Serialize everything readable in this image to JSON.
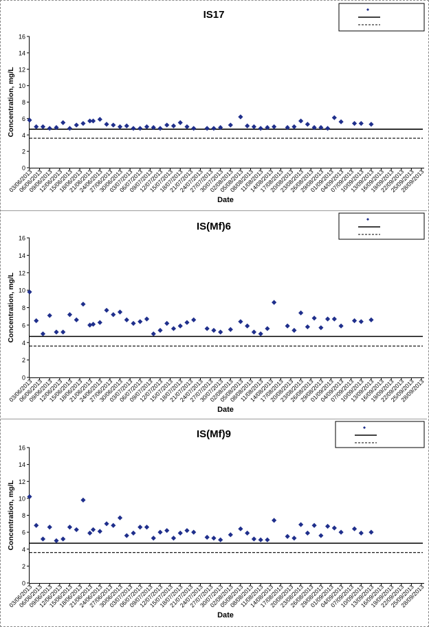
{
  "chart_data": [
    {
      "type": "scatter",
      "title": "IS17",
      "xlabel": "Date",
      "ylabel": "Concentration, mg/L",
      "ylim": [
        0,
        16
      ],
      "yticks": [
        0,
        2,
        4,
        6,
        8,
        10,
        12,
        14,
        16
      ],
      "x_tick_labels": [
        "03/06/2013",
        "06/06/2013",
        "09/06/2013",
        "12/06/2013",
        "15/06/2013",
        "18/06/2013",
        "21/06/2013",
        "24/06/2013",
        "27/06/2013",
        "30/06/2013",
        "03/07/2013",
        "06/07/2013",
        "09/07/2013",
        "12/07/2013",
        "15/07/2013",
        "18/07/2013",
        "21/07/2013",
        "24/07/2013",
        "27/07/2013",
        "30/07/2013",
        "02/08/2013",
        "05/08/2013",
        "08/08/2013",
        "11/08/2013",
        "14/08/2013",
        "17/08/2013",
        "20/08/2013",
        "23/08/2013",
        "26/08/2013",
        "29/08/2013",
        "01/09/2013",
        "04/09/2013",
        "07/09/2013",
        "10/09/2013",
        "13/09/2013",
        "16/09/2013",
        "19/09/2013",
        "22/09/2013",
        "25/09/2013",
        "28/09/2013"
      ],
      "grid": false,
      "legend_position": "top-right",
      "point_color": "#1f2f8c",
      "points": [
        {
          "x": "03/06/2013",
          "y": 5.8
        },
        {
          "x": "05/06/2013",
          "y": 5.0
        },
        {
          "x": "07/06/2013",
          "y": 5.0
        },
        {
          "x": "09/06/2013",
          "y": 4.8
        },
        {
          "x": "11/06/2013",
          "y": 4.9
        },
        {
          "x": "13/06/2013",
          "y": 5.5
        },
        {
          "x": "15/06/2013",
          "y": 4.8
        },
        {
          "x": "17/06/2013",
          "y": 5.2
        },
        {
          "x": "19/06/2013",
          "y": 5.4
        },
        {
          "x": "21/06/2013",
          "y": 5.7
        },
        {
          "x": "22/06/2013",
          "y": 5.7
        },
        {
          "x": "24/06/2013",
          "y": 5.9
        },
        {
          "x": "26/06/2013",
          "y": 5.3
        },
        {
          "x": "28/06/2013",
          "y": 5.2
        },
        {
          "x": "30/06/2013",
          "y": 5.0
        },
        {
          "x": "02/07/2013",
          "y": 5.1
        },
        {
          "x": "04/07/2013",
          "y": 4.8
        },
        {
          "x": "06/07/2013",
          "y": 4.8
        },
        {
          "x": "08/07/2013",
          "y": 5.0
        },
        {
          "x": "10/07/2013",
          "y": 4.9
        },
        {
          "x": "12/07/2013",
          "y": 4.8
        },
        {
          "x": "14/07/2013",
          "y": 5.2
        },
        {
          "x": "16/07/2013",
          "y": 5.1
        },
        {
          "x": "18/07/2013",
          "y": 5.5
        },
        {
          "x": "20/07/2013",
          "y": 5.0
        },
        {
          "x": "22/07/2013",
          "y": 4.8
        },
        {
          "x": "26/07/2013",
          "y": 4.8
        },
        {
          "x": "28/07/2013",
          "y": 4.8
        },
        {
          "x": "30/07/2013",
          "y": 4.9
        },
        {
          "x": "02/08/2013",
          "y": 5.2
        },
        {
          "x": "05/08/2013",
          "y": 6.2
        },
        {
          "x": "07/08/2013",
          "y": 5.1
        },
        {
          "x": "09/08/2013",
          "y": 5.0
        },
        {
          "x": "11/08/2013",
          "y": 4.8
        },
        {
          "x": "13/08/2013",
          "y": 4.9
        },
        {
          "x": "15/08/2013",
          "y": 5.0
        },
        {
          "x": "19/08/2013",
          "y": 4.9
        },
        {
          "x": "21/08/2013",
          "y": 5.0
        },
        {
          "x": "23/08/2013",
          "y": 5.7
        },
        {
          "x": "25/08/2013",
          "y": 5.3
        },
        {
          "x": "27/08/2013",
          "y": 4.9
        },
        {
          "x": "29/08/2013",
          "y": 4.9
        },
        {
          "x": "31/08/2013",
          "y": 4.8
        },
        {
          "x": "02/09/2013",
          "y": 6.1
        },
        {
          "x": "04/09/2013",
          "y": 5.6
        },
        {
          "x": "08/09/2013",
          "y": 5.4
        },
        {
          "x": "10/09/2013",
          "y": 5.4
        },
        {
          "x": "13/09/2013",
          "y": 5.3
        }
      ],
      "hlines": [
        {
          "y": 4.7,
          "style": "solid"
        },
        {
          "y": 3.6,
          "style": "dashed"
        }
      ],
      "legend": [
        "",
        "",
        ""
      ]
    },
    {
      "type": "scatter",
      "title": "IS(Mf)6",
      "xlabel": "Date",
      "ylabel": "Concentration, mg/L",
      "ylim": [
        0,
        16
      ],
      "yticks": [
        0,
        2,
        4,
        6,
        8,
        10,
        12,
        14,
        16
      ],
      "x_tick_labels": [
        "03/06/2013",
        "06/06/2013",
        "09/06/2013",
        "12/06/2013",
        "15/06/2013",
        "18/06/2013",
        "21/06/2013",
        "24/06/2013",
        "27/06/2013",
        "30/06/2013",
        "03/07/2013",
        "06/07/2013",
        "09/07/2013",
        "12/07/2013",
        "15/07/2013",
        "18/07/2013",
        "21/07/2013",
        "24/07/2013",
        "27/07/2013",
        "30/07/2013",
        "02/08/2013",
        "05/08/2013",
        "08/08/2013",
        "11/08/2013",
        "14/08/2013",
        "17/08/2013",
        "20/08/2013",
        "23/08/2013",
        "26/08/2013",
        "29/08/2013",
        "01/09/2013",
        "04/09/2013",
        "07/09/2013",
        "10/09/2013",
        "13/09/2013",
        "16/09/2013",
        "19/09/2013",
        "22/09/2013",
        "25/09/2013",
        "28/09/2013"
      ],
      "grid": false,
      "legend_position": "top-right",
      "point_color": "#1f2f8c",
      "points": [
        {
          "x": "03/06/2013",
          "y": 9.8
        },
        {
          "x": "05/06/2013",
          "y": 6.5
        },
        {
          "x": "07/06/2013",
          "y": 5.0
        },
        {
          "x": "09/06/2013",
          "y": 7.1
        },
        {
          "x": "11/06/2013",
          "y": 5.2
        },
        {
          "x": "13/06/2013",
          "y": 5.2
        },
        {
          "x": "15/06/2013",
          "y": 7.2
        },
        {
          "x": "17/06/2013",
          "y": 6.6
        },
        {
          "x": "19/06/2013",
          "y": 8.4
        },
        {
          "x": "21/06/2013",
          "y": 6.0
        },
        {
          "x": "22/06/2013",
          "y": 6.1
        },
        {
          "x": "24/06/2013",
          "y": 6.3
        },
        {
          "x": "26/06/2013",
          "y": 7.7
        },
        {
          "x": "28/06/2013",
          "y": 7.2
        },
        {
          "x": "30/06/2013",
          "y": 7.5
        },
        {
          "x": "02/07/2013",
          "y": 6.6
        },
        {
          "x": "04/07/2013",
          "y": 6.2
        },
        {
          "x": "06/07/2013",
          "y": 6.4
        },
        {
          "x": "08/07/2013",
          "y": 6.7
        },
        {
          "x": "10/07/2013",
          "y": 5.0
        },
        {
          "x": "12/07/2013",
          "y": 5.4
        },
        {
          "x": "14/07/2013",
          "y": 6.2
        },
        {
          "x": "16/07/2013",
          "y": 5.6
        },
        {
          "x": "18/07/2013",
          "y": 5.9
        },
        {
          "x": "20/07/2013",
          "y": 6.3
        },
        {
          "x": "22/07/2013",
          "y": 6.6
        },
        {
          "x": "26/07/2013",
          "y": 5.6
        },
        {
          "x": "28/07/2013",
          "y": 5.4
        },
        {
          "x": "30/07/2013",
          "y": 5.2
        },
        {
          "x": "02/08/2013",
          "y": 5.5
        },
        {
          "x": "05/08/2013",
          "y": 6.4
        },
        {
          "x": "07/08/2013",
          "y": 5.9
        },
        {
          "x": "09/08/2013",
          "y": 5.2
        },
        {
          "x": "11/08/2013",
          "y": 5.0
        },
        {
          "x": "13/08/2013",
          "y": 5.6
        },
        {
          "x": "15/08/2013",
          "y": 8.6
        },
        {
          "x": "19/08/2013",
          "y": 5.9
        },
        {
          "x": "21/08/2013",
          "y": 5.4
        },
        {
          "x": "23/08/2013",
          "y": 7.4
        },
        {
          "x": "25/08/2013",
          "y": 5.8
        },
        {
          "x": "27/08/2013",
          "y": 6.8
        },
        {
          "x": "29/08/2013",
          "y": 5.7
        },
        {
          "x": "31/08/2013",
          "y": 6.7
        },
        {
          "x": "02/09/2013",
          "y": 6.7
        },
        {
          "x": "04/09/2013",
          "y": 5.9
        },
        {
          "x": "08/09/2013",
          "y": 6.5
        },
        {
          "x": "10/09/2013",
          "y": 6.4
        },
        {
          "x": "13/09/2013",
          "y": 6.6
        }
      ],
      "hlines": [
        {
          "y": 4.7,
          "style": "solid"
        },
        {
          "y": 3.6,
          "style": "dashed"
        }
      ],
      "legend": [
        "",
        "",
        ""
      ]
    },
    {
      "type": "scatter",
      "title": "IS(Mf)9",
      "xlabel": "Date",
      "ylabel": "Concentration, mg/L",
      "ylim": [
        0,
        16
      ],
      "yticks": [
        0,
        2,
        4,
        6,
        8,
        10,
        12,
        14,
        16
      ],
      "x_tick_labels": [
        "03/06/2013",
        "06/06/2013",
        "09/06/2013",
        "12/06/2013",
        "15/06/2013",
        "18/06/2013",
        "21/06/2013",
        "24/06/2013",
        "27/06/2013",
        "30/06/2013",
        "03/07/2013",
        "06/07/2013",
        "09/07/2013",
        "12/07/2013",
        "15/07/2013",
        "18/07/2013",
        "21/07/2013",
        "24/07/2013",
        "27/07/2013",
        "30/07/2013",
        "02/08/2013",
        "05/08/2013",
        "08/08/2013",
        "11/08/2013",
        "14/08/2013",
        "17/08/2013",
        "20/08/2013",
        "23/08/2013",
        "26/08/2013",
        "29/08/2013",
        "01/09/2013",
        "04/09/2013",
        "07/09/2013",
        "10/09/2013",
        "13/09/2013",
        "16/09/2013",
        "19/09/2013",
        "22/09/2013",
        "25/09/2013",
        "28/09/2013"
      ],
      "grid": false,
      "legend_position": "top-right",
      "point_color": "#1f2f8c",
      "points": [
        {
          "x": "03/06/2013",
          "y": 10.2
        },
        {
          "x": "05/06/2013",
          "y": 6.8
        },
        {
          "x": "07/06/2013",
          "y": 5.2
        },
        {
          "x": "09/06/2013",
          "y": 6.6
        },
        {
          "x": "11/06/2013",
          "y": 5.0
        },
        {
          "x": "13/06/2013",
          "y": 5.2
        },
        {
          "x": "15/06/2013",
          "y": 6.6
        },
        {
          "x": "17/06/2013",
          "y": 6.3
        },
        {
          "x": "19/06/2013",
          "y": 9.8
        },
        {
          "x": "21/06/2013",
          "y": 5.9
        },
        {
          "x": "22/06/2013",
          "y": 6.3
        },
        {
          "x": "24/06/2013",
          "y": 6.1
        },
        {
          "x": "26/06/2013",
          "y": 7.0
        },
        {
          "x": "28/06/2013",
          "y": 6.8
        },
        {
          "x": "30/06/2013",
          "y": 7.7
        },
        {
          "x": "02/07/2013",
          "y": 5.6
        },
        {
          "x": "04/07/2013",
          "y": 5.9
        },
        {
          "x": "06/07/2013",
          "y": 6.6
        },
        {
          "x": "08/07/2013",
          "y": 6.6
        },
        {
          "x": "10/07/2013",
          "y": 5.3
        },
        {
          "x": "12/07/2013",
          "y": 6.0
        },
        {
          "x": "14/07/2013",
          "y": 6.2
        },
        {
          "x": "16/07/2013",
          "y": 5.3
        },
        {
          "x": "18/07/2013",
          "y": 5.9
        },
        {
          "x": "20/07/2013",
          "y": 6.2
        },
        {
          "x": "22/07/2013",
          "y": 6.0
        },
        {
          "x": "26/07/2013",
          "y": 5.4
        },
        {
          "x": "28/07/2013",
          "y": 5.3
        },
        {
          "x": "30/07/2013",
          "y": 5.1
        },
        {
          "x": "02/08/2013",
          "y": 5.7
        },
        {
          "x": "05/08/2013",
          "y": 6.4
        },
        {
          "x": "07/08/2013",
          "y": 5.9
        },
        {
          "x": "09/08/2013",
          "y": 5.2
        },
        {
          "x": "11/08/2013",
          "y": 5.1
        },
        {
          "x": "13/08/2013",
          "y": 5.1
        },
        {
          "x": "15/08/2013",
          "y": 7.4
        },
        {
          "x": "19/08/2013",
          "y": 5.5
        },
        {
          "x": "21/08/2013",
          "y": 5.3
        },
        {
          "x": "23/08/2013",
          "y": 6.9
        },
        {
          "x": "25/08/2013",
          "y": 5.9
        },
        {
          "x": "27/08/2013",
          "y": 6.8
        },
        {
          "x": "29/08/2013",
          "y": 5.6
        },
        {
          "x": "31/08/2013",
          "y": 6.7
        },
        {
          "x": "02/09/2013",
          "y": 6.5
        },
        {
          "x": "04/09/2013",
          "y": 6.0
        },
        {
          "x": "08/09/2013",
          "y": 6.4
        },
        {
          "x": "10/09/2013",
          "y": 5.9
        },
        {
          "x": "13/09/2013",
          "y": 6.0
        }
      ],
      "hlines": [
        {
          "y": 4.7,
          "style": "solid"
        },
        {
          "y": 3.6,
          "style": "dashed"
        }
      ],
      "legend": [
        "",
        "",
        ""
      ]
    }
  ]
}
